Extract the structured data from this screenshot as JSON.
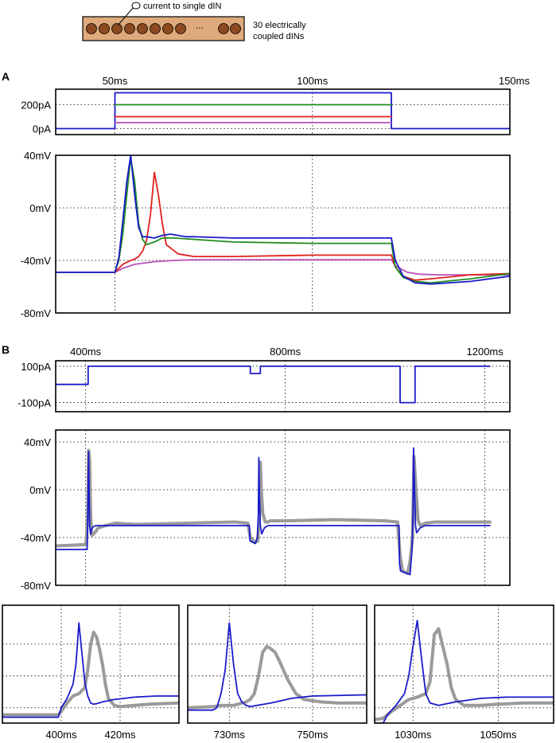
{
  "schematic": {
    "electrode_label": "current to single dIN",
    "neuron_label_line1": "30 electrically",
    "neuron_label_line2": "coupled dINs",
    "ellipsis": "...",
    "colors": {
      "box_fill": "#deaa7b",
      "cell_fill": "#8b4a20"
    }
  },
  "panel_labels": {
    "a": "A",
    "b": "B"
  },
  "colors": {
    "blue": "#1a1acc",
    "green": "#1f8c1f",
    "red": "#e0201c",
    "magenta": "#b84fb8",
    "gray": "#9a9a9a",
    "purple": "#7a5ab8"
  },
  "chart_data": [
    {
      "id": "a-current",
      "type": "line",
      "title": "",
      "xlabel": "",
      "ylabel": "",
      "x_ticks": [
        50,
        100,
        150
      ],
      "x_tick_labels": [
        "50ms",
        "100ms",
        "150ms"
      ],
      "y_ticks": [
        0,
        200
      ],
      "y_tick_labels": [
        "0pA",
        "200pA"
      ],
      "xlim": [
        35,
        150
      ],
      "ylim": [
        -50,
        330
      ],
      "grid": true,
      "series": [
        {
          "name": "blue",
          "color": "#1a1acc",
          "x": [
            35,
            50,
            50,
            120,
            120,
            150
          ],
          "y": [
            0,
            0,
            300,
            300,
            0,
            0
          ]
        },
        {
          "name": "green",
          "color": "#1f8c1f",
          "x": [
            50,
            120
          ],
          "y": [
            200,
            200
          ]
        },
        {
          "name": "red",
          "color": "#e0201c",
          "x": [
            50,
            120
          ],
          "y": [
            100,
            100
          ]
        },
        {
          "name": "magenta",
          "color": "#b84fb8",
          "x": [
            50,
            120
          ],
          "y": [
            50,
            50
          ]
        }
      ]
    },
    {
      "id": "a-voltage",
      "type": "line",
      "title": "",
      "xlabel": "",
      "ylabel": "",
      "x_ticks": [
        50,
        100,
        150
      ],
      "y_ticks": [
        -80,
        -40,
        0,
        40
      ],
      "y_tick_labels": [
        "-80mV",
        "-40mV",
        "0mV",
        "40mV"
      ],
      "xlim": [
        35,
        150
      ],
      "ylim": [
        -80,
        40
      ],
      "grid": true,
      "series": [
        {
          "name": "magenta",
          "color": "#b84fb8",
          "x": [
            35,
            50,
            52,
            55,
            60,
            65,
            70,
            80,
            100,
            120,
            121,
            124,
            127,
            132,
            140,
            150
          ],
          "y": [
            -49,
            -49,
            -46,
            -43,
            -41,
            -40,
            -39.5,
            -39.5,
            -39.5,
            -39.5,
            -44,
            -49,
            -50.5,
            -51,
            -51,
            -51
          ]
        },
        {
          "name": "red",
          "color": "#e0201c",
          "x": [
            35,
            50,
            52,
            54,
            55,
            56,
            57,
            58,
            59,
            60,
            61,
            62,
            63,
            66,
            70,
            80,
            100,
            120,
            121,
            123,
            126,
            130,
            140,
            150
          ],
          "y": [
            -49,
            -49,
            -43,
            -40,
            -39,
            -37,
            -33,
            -25,
            -5,
            27,
            10,
            -12,
            -28,
            -35,
            -37,
            -37,
            -36,
            -36,
            -45,
            -52,
            -55,
            -54,
            -51,
            -50
          ]
        },
        {
          "name": "green",
          "color": "#1f8c1f",
          "x": [
            35,
            50,
            51,
            52,
            53,
            54,
            55,
            56,
            57,
            58,
            60,
            62,
            65,
            70,
            80,
            100,
            120,
            121,
            123,
            126,
            130,
            140,
            150
          ],
          "y": [
            -49,
            -49,
            -40,
            -20,
            10,
            38,
            20,
            -12,
            -24,
            -28,
            -26,
            -23,
            -23,
            -24,
            -26,
            -27,
            -27,
            -45,
            -53,
            -56,
            -57,
            -54,
            -50
          ]
        },
        {
          "name": "blue",
          "color": "#1a1acc",
          "x": [
            35,
            50,
            51,
            52,
            53,
            54,
            55,
            56,
            57,
            58,
            60,
            62,
            64,
            66,
            68,
            70,
            80,
            100,
            120,
            121,
            123,
            126,
            130,
            140,
            150
          ],
          "y": [
            -49,
            -49,
            -38,
            -10,
            20,
            40,
            10,
            -15,
            -22,
            -22,
            -23,
            -21,
            -20,
            -21,
            -22,
            -22,
            -23,
            -23,
            -23,
            -40,
            -52,
            -57,
            -58,
            -56,
            -52
          ]
        }
      ]
    },
    {
      "id": "b-current",
      "type": "line",
      "title": "",
      "xlabel": "",
      "ylabel": "",
      "x_ticks": [
        400,
        800,
        1200
      ],
      "x_tick_labels": [
        "400ms",
        "800ms",
        "1200ms"
      ],
      "y_ticks": [
        -100,
        100
      ],
      "y_tick_labels": [
        "-100pA",
        "100pA"
      ],
      "xlim": [
        340,
        1250
      ],
      "ylim": [
        -150,
        130
      ],
      "grid": true,
      "series": [
        {
          "name": "blue",
          "color": "#1a1acc",
          "x": [
            340,
            405,
            405,
            730,
            730,
            750,
            750,
            1030,
            1030,
            1060,
            1060,
            1210
          ],
          "y": [
            0,
            0,
            100,
            100,
            60,
            60,
            100,
            100,
            -100,
            -100,
            100,
            100
          ]
        }
      ]
    },
    {
      "id": "b-voltage",
      "type": "line",
      "title": "",
      "xlabel": "",
      "ylabel": "",
      "x_ticks": [
        400,
        800,
        1200
      ],
      "y_ticks": [
        -80,
        -40,
        0,
        40
      ],
      "y_tick_labels": [
        "-80mV",
        "-40mV",
        "0mV",
        "40mV"
      ],
      "xlim": [
        340,
        1250
      ],
      "ylim": [
        -80,
        50
      ],
      "grid": true,
      "series": [
        {
          "name": "gray",
          "color": "#9a9a9a",
          "x": [
            340,
            395,
            400,
            402,
            404,
            406,
            408,
            410,
            412,
            414,
            416,
            420,
            425,
            440,
            460,
            500,
            600,
            700,
            725,
            730,
            740,
            745,
            748,
            750,
            752,
            755,
            760,
            765,
            770,
            800,
            900,
            1000,
            1025,
            1030,
            1035,
            1045,
            1050,
            1055,
            1058,
            1062,
            1066,
            1070,
            1080,
            1100,
            1150,
            1210
          ],
          "y": [
            -47,
            -46,
            -46,
            -40,
            -20,
            33,
            25,
            -20,
            -38,
            -38,
            -37,
            -35,
            -32,
            -30,
            -28,
            -29,
            -28,
            -27,
            -28,
            -40,
            -44,
            -43,
            -25,
            23,
            0,
            -20,
            -27,
            -27,
            -26,
            -26,
            -25,
            -26,
            -27,
            -55,
            -68,
            -70,
            -60,
            -40,
            28,
            0,
            -25,
            -30,
            -28,
            -27,
            -27,
            -27
          ]
        },
        {
          "name": "blue",
          "color": "#1a1acc",
          "x": [
            340,
            403,
            404,
            405,
            406,
            407,
            408,
            410,
            412,
            415,
            420,
            430,
            700,
            728,
            729,
            730,
            740,
            744,
            746,
            747,
            748,
            750,
            753,
            758,
            765,
            1000,
            1028,
            1029,
            1031,
            1050,
            1054,
            1056,
            1057,
            1059,
            1061,
            1063,
            1070,
            1080,
            1210
          ],
          "y": [
            -50,
            -50,
            -30,
            0,
            32,
            0,
            -30,
            -37,
            -33,
            -31,
            -30,
            -30,
            -30,
            -30,
            -42,
            -43,
            -45,
            -40,
            -20,
            27,
            0,
            -30,
            -37,
            -32,
            -30,
            -30,
            -30,
            -62,
            -68,
            -71,
            -50,
            -20,
            35,
            0,
            -30,
            -36,
            -32,
            -30,
            -30
          ]
        }
      ]
    },
    {
      "id": "zoom-1",
      "type": "line",
      "title": "",
      "xlabel": "",
      "ylabel": "",
      "x_ticks": [
        400,
        420
      ],
      "x_tick_labels": [
        "400ms",
        "420ms"
      ],
      "xlim": [
        380,
        440
      ],
      "ylim": [
        -55,
        45
      ],
      "grid": true,
      "series": [
        {
          "name": "gray",
          "color": "#9a9a9a",
          "x": [
            380,
            399,
            400,
            402,
            404,
            406,
            408,
            409,
            410,
            411,
            412,
            413,
            414,
            415,
            416,
            418,
            420,
            425,
            430,
            440
          ],
          "y": [
            -48,
            -48,
            -45,
            -38,
            -32,
            -30,
            -25,
            -10,
            12,
            22,
            18,
            8,
            -5,
            -22,
            -34,
            -40,
            -41,
            -40,
            -39,
            -38
          ]
        },
        {
          "name": "blue",
          "color": "#1a1acc",
          "x": [
            380,
            399,
            400,
            402,
            404,
            405,
            406,
            407,
            408,
            409,
            410,
            411,
            412,
            414,
            418,
            425,
            432,
            440
          ],
          "y": [
            -50,
            -50,
            -42,
            -34,
            -22,
            -5,
            30,
            5,
            -20,
            -32,
            -38,
            -39,
            -38.5,
            -37,
            -35,
            -33,
            -32,
            -32
          ]
        }
      ]
    },
    {
      "id": "zoom-2",
      "type": "line",
      "title": "",
      "xlabel": "",
      "ylabel": "",
      "x_ticks": [
        730,
        750
      ],
      "x_tick_labels": [
        "730ms",
        "750ms"
      ],
      "xlim": [
        720,
        763
      ],
      "ylim": [
        -55,
        45
      ],
      "grid": true,
      "series": [
        {
          "name": "gray",
          "color": "#9a9a9a",
          "x": [
            720,
            726,
            728,
            730,
            731,
            732,
            734,
            735,
            736,
            737,
            738,
            739,
            740,
            741,
            742,
            743,
            744,
            746,
            748,
            752,
            756,
            763
          ],
          "y": [
            -42,
            -41,
            -40,
            -40,
            -40,
            -39,
            -37,
            -35,
            -30,
            -15,
            5,
            10,
            8,
            5,
            -2,
            -10,
            -18,
            -30,
            -35,
            -37,
            -38,
            -38
          ]
        },
        {
          "name": "blue",
          "color": "#1a1acc",
          "x": [
            720,
            726,
            727,
            728,
            729,
            730,
            731,
            732,
            733,
            734,
            735,
            740,
            745,
            750,
            763
          ],
          "y": [
            -44,
            -44,
            -42,
            -30,
            -10,
            30,
            -5,
            -30,
            -37,
            -40,
            -41,
            -38,
            -34,
            -32,
            -31
          ]
        }
      ]
    },
    {
      "id": "zoom-3",
      "type": "line",
      "title": "",
      "xlabel": "",
      "ylabel": "",
      "x_ticks": [
        1030,
        1050
      ],
      "x_tick_labels": [
        "1030ms",
        "1050ms"
      ],
      "xlim": [
        1021,
        1063
      ],
      "ylim": [
        -55,
        45
      ],
      "grid": true,
      "series": [
        {
          "name": "gray",
          "color": "#9a9a9a",
          "x": [
            1021,
            1023,
            1025,
            1027,
            1029,
            1031,
            1033,
            1034,
            1035,
            1036,
            1037,
            1038,
            1039,
            1040,
            1042,
            1046,
            1050,
            1056,
            1063
          ],
          "y": [
            -52,
            -51,
            -45,
            -40,
            -35,
            -33,
            -30,
            -20,
            20,
            25,
            10,
            -5,
            -25,
            -35,
            -40,
            -40,
            -39,
            -38,
            -38
          ]
        },
        {
          "name": "blue",
          "color": "#1a1acc",
          "x": [
            1021,
            1023,
            1024,
            1026,
            1028,
            1029,
            1030,
            1031,
            1032,
            1033,
            1034,
            1036,
            1040,
            1046,
            1052,
            1063
          ],
          "y": [
            -55,
            -55,
            -48,
            -40,
            -30,
            -15,
            10,
            32,
            0,
            -30,
            -38,
            -40,
            -37,
            -34,
            -33,
            -33
          ]
        }
      ]
    }
  ]
}
